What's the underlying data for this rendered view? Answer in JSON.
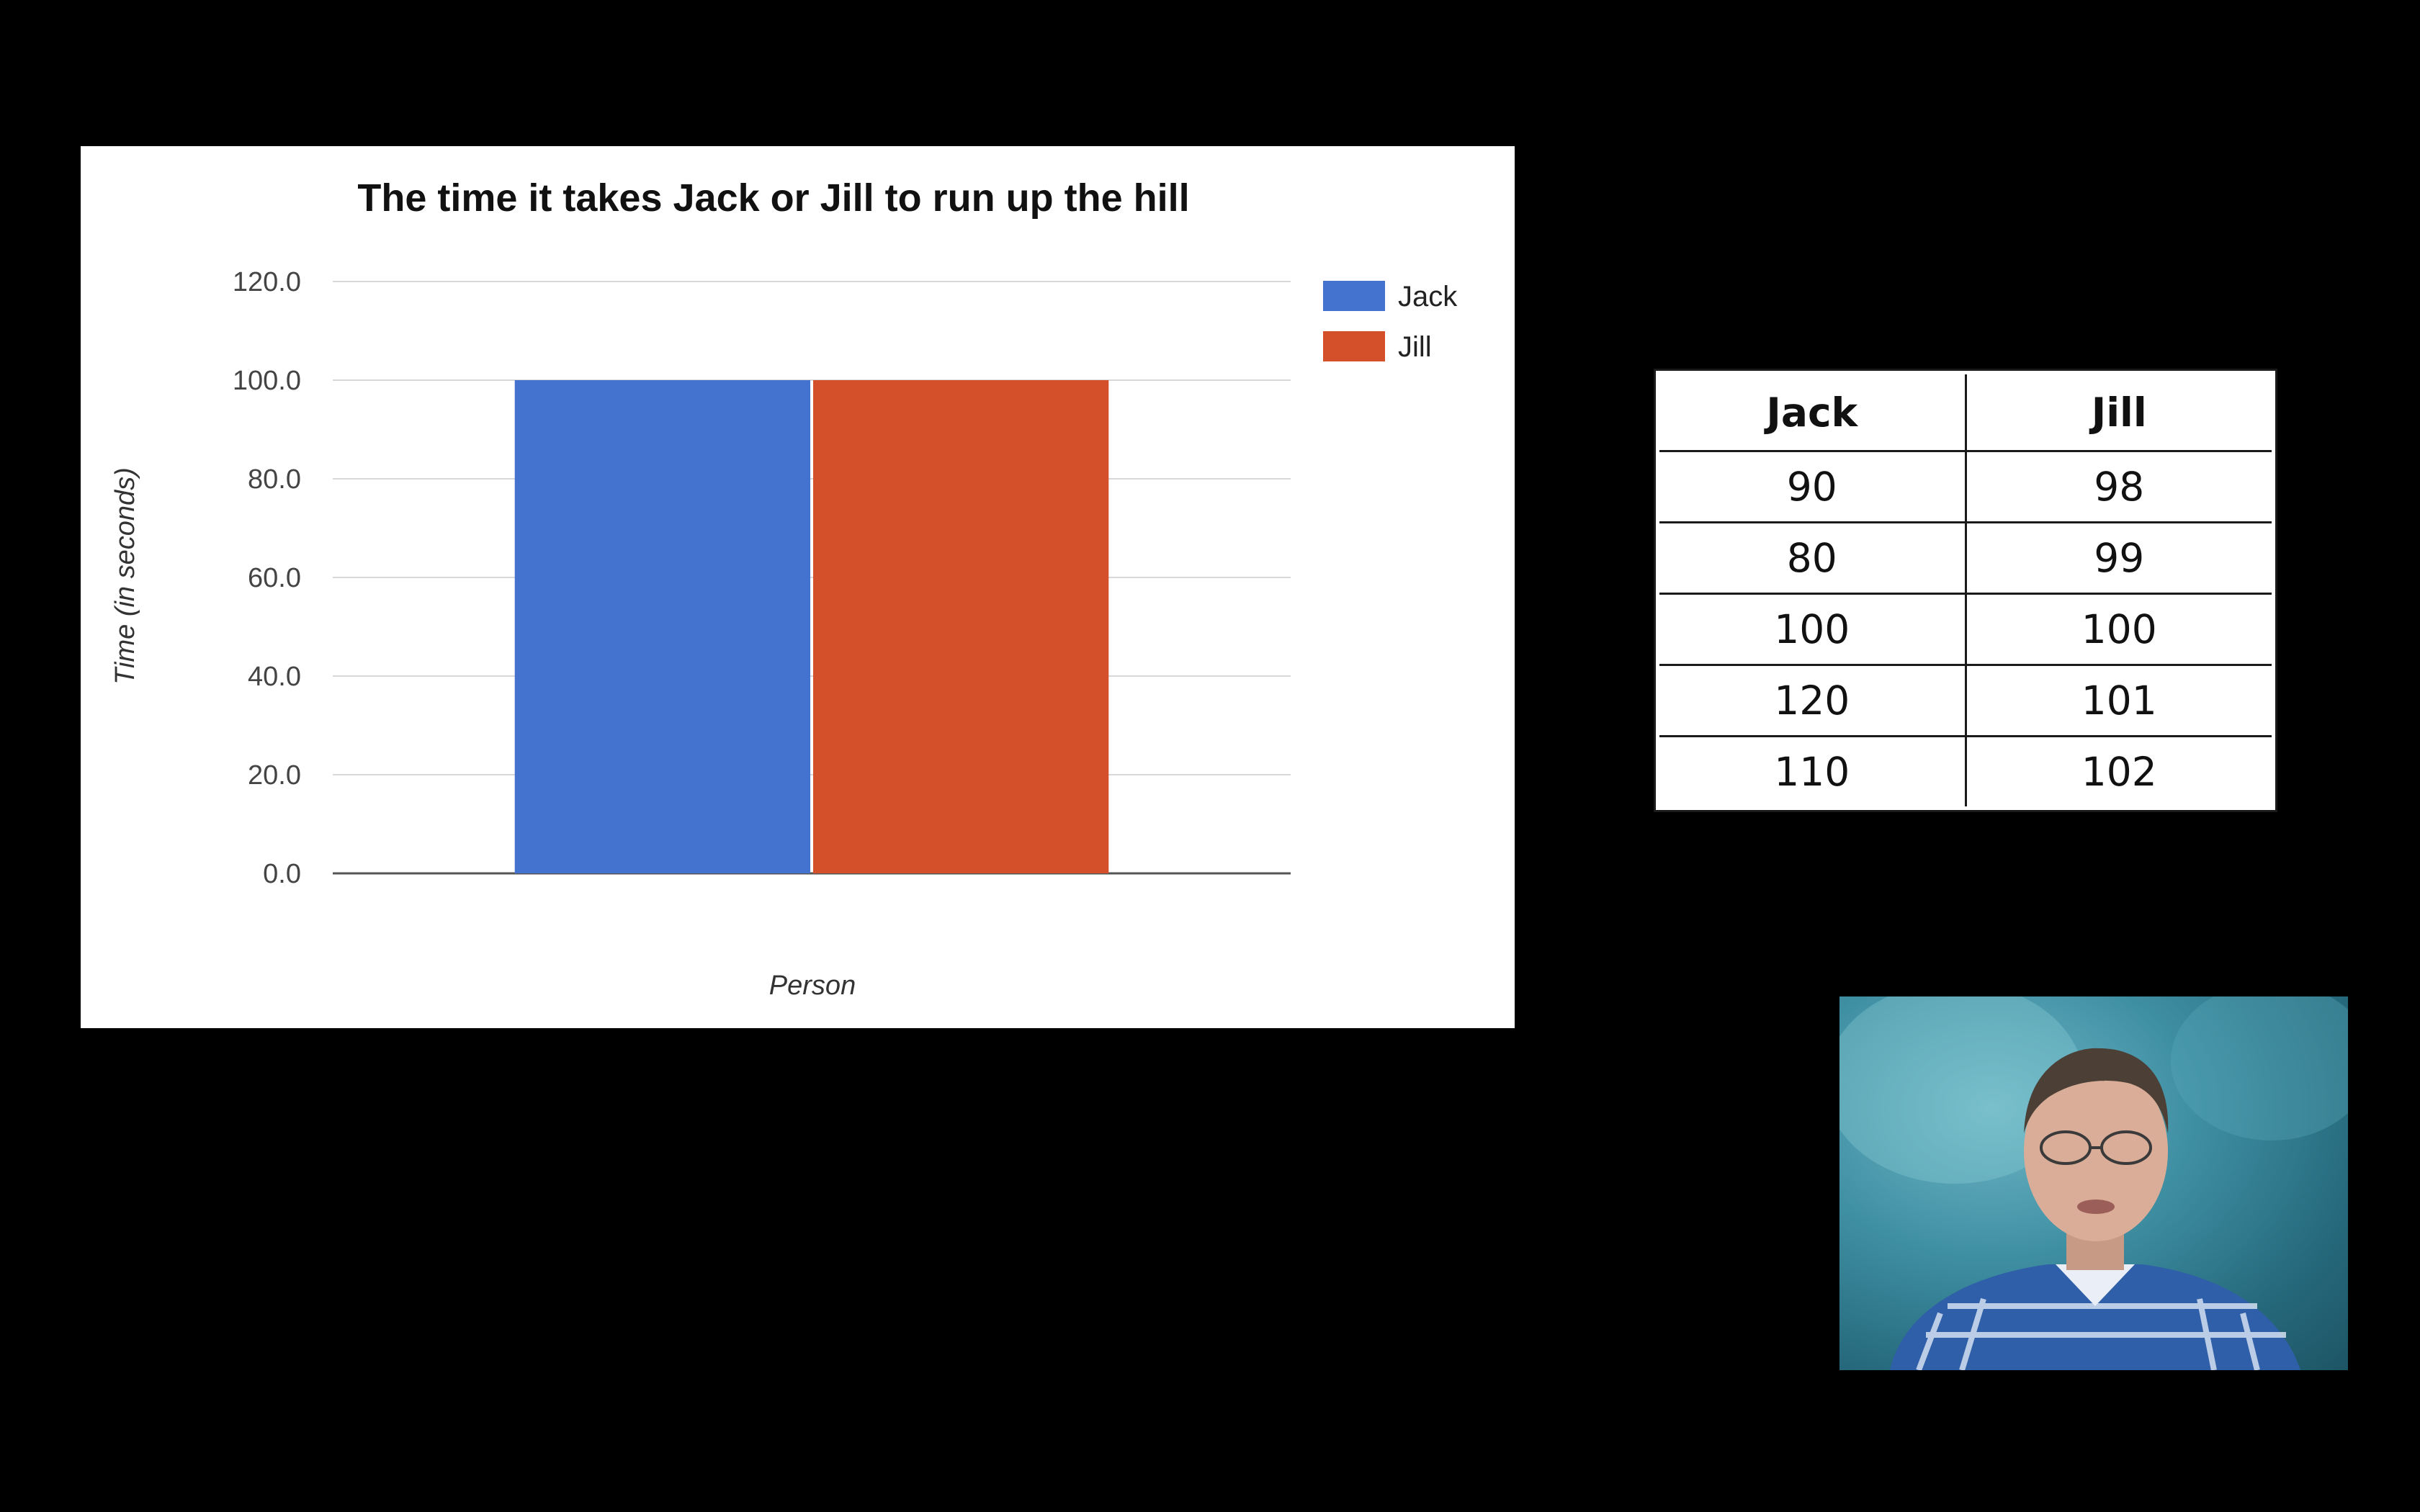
{
  "chart_data": {
    "type": "bar",
    "title": "The time it takes Jack or Jill to run up the hill",
    "xlabel": "Person",
    "ylabel": "Time (in seconds)",
    "categories": [
      ""
    ],
    "series": [
      {
        "name": "Jack",
        "values": [
          100.0
        ],
        "color": "#4472cf"
      },
      {
        "name": "Jill",
        "values": [
          100.0
        ],
        "color": "#d4502a"
      }
    ],
    "ylim": [
      0,
      120
    ],
    "yticks": [
      "0.0",
      "20.0",
      "40.0",
      "60.0",
      "80.0",
      "100.0",
      "120.0"
    ],
    "grid": true,
    "legend_position": "right"
  },
  "table": {
    "headers": [
      "Jack",
      "Jill"
    ],
    "rows": [
      [
        "90",
        "98"
      ],
      [
        "80",
        "99"
      ],
      [
        "100",
        "100"
      ],
      [
        "120",
        "101"
      ],
      [
        "110",
        "102"
      ]
    ]
  },
  "colors": {
    "background": "#000000",
    "jack": "#4472cf",
    "jill": "#d4502a"
  }
}
